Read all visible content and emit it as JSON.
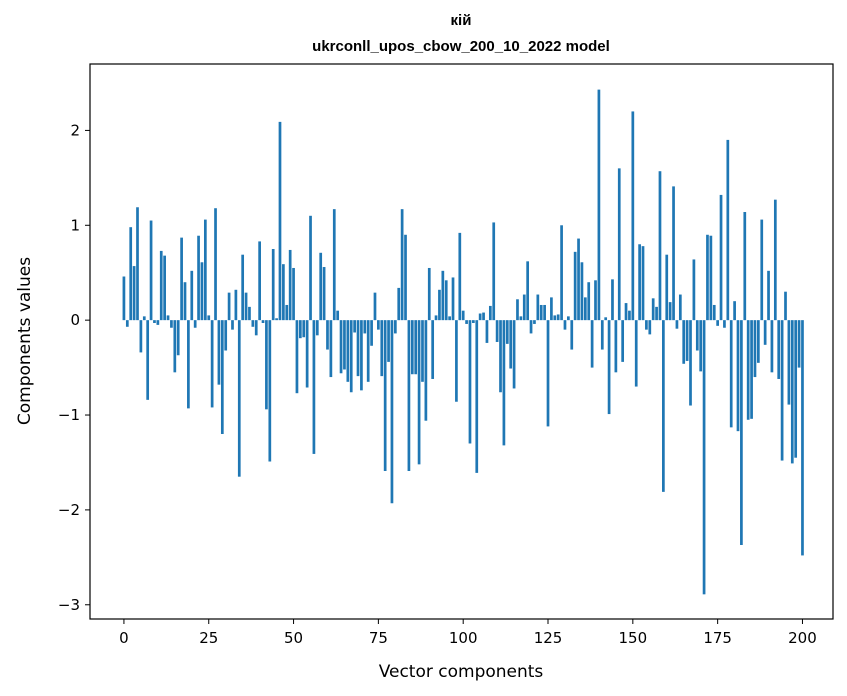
{
  "chart_data": {
    "type": "bar",
    "title_line1": "кій",
    "title_line2": "ukrconll_upos_cbow_200_10_2022 model",
    "xlabel": "Vector components",
    "ylabel": "Components values",
    "xlim": [
      -10,
      209
    ],
    "ylim": [
      -3.15,
      2.7
    ],
    "xticks": [
      0,
      25,
      50,
      75,
      100,
      125,
      150,
      175,
      200
    ],
    "xtick_labels": [
      "0",
      "25",
      "50",
      "75",
      "100",
      "125",
      "150",
      "175",
      "200"
    ],
    "yticks": [
      -3,
      -2,
      -1,
      0,
      1,
      2
    ],
    "ytick_labels": [
      "−3",
      "−2",
      "−1",
      "0",
      "1",
      "2"
    ],
    "bar_color": "#1f77b4",
    "grid": false,
    "values": [
      0.46,
      -0.07,
      0.98,
      0.57,
      1.19,
      -0.34,
      0.04,
      -0.84,
      1.05,
      -0.03,
      -0.05,
      0.73,
      0.68,
      0.05,
      -0.08,
      -0.55,
      -0.37,
      0.87,
      0.4,
      -0.93,
      0.52,
      -0.08,
      0.89,
      0.61,
      1.06,
      0.05,
      -0.92,
      1.18,
      -0.68,
      -1.2,
      -0.32,
      0.29,
      -0.1,
      0.32,
      -1.65,
      0.69,
      0.29,
      0.14,
      -0.07,
      -0.16,
      0.83,
      -0.03,
      -0.94,
      -1.49,
      0.75,
      0.02,
      2.09,
      0.59,
      0.16,
      0.74,
      0.55,
      -0.77,
      -0.19,
      -0.18,
      -0.71,
      1.1,
      -1.41,
      -0.16,
      0.71,
      0.56,
      -0.31,
      -0.6,
      1.17,
      0.1,
      -0.56,
      -0.52,
      -0.65,
      -0.76,
      -0.13,
      -0.59,
      -0.74,
      -0.14,
      -0.65,
      -0.27,
      0.29,
      -0.1,
      -0.59,
      -1.59,
      -0.44,
      -1.93,
      -0.14,
      0.34,
      1.17,
      0.9,
      -1.59,
      -0.57,
      -0.57,
      -1.52,
      -0.65,
      -1.06,
      0.55,
      -0.62,
      0.05,
      0.32,
      0.52,
      0.42,
      0.04,
      0.45,
      -0.86,
      0.92,
      0.1,
      -0.04,
      -1.3,
      -0.03,
      -1.61,
      0.07,
      0.08,
      -0.24,
      0.15,
      1.03,
      -0.23,
      -0.76,
      -1.32,
      -0.25,
      -0.51,
      -0.72,
      0.22,
      0.04,
      0.27,
      0.62,
      -0.14,
      -0.04,
      0.27,
      0.16,
      0.16,
      -1.12,
      0.24,
      0.05,
      0.06,
      1.0,
      -0.1,
      0.04,
      -0.31,
      0.72,
      0.86,
      0.61,
      0.24,
      0.4,
      -0.5,
      0.42,
      2.43,
      -0.31,
      0.03,
      -0.99,
      0.43,
      -0.55,
      1.6,
      -0.44,
      0.18,
      0.1,
      2.2,
      -0.7,
      0.8,
      0.78,
      -0.1,
      -0.15,
      0.23,
      0.14,
      1.57,
      -1.81,
      0.69,
      0.19,
      1.41,
      -0.09,
      0.27,
      -0.46,
      -0.43,
      -0.9,
      0.64,
      -0.32,
      -0.54,
      -2.89,
      0.9,
      0.89,
      0.16,
      -0.06,
      1.32,
      -0.08,
      1.9,
      -1.13,
      0.2,
      -1.17,
      -2.37,
      1.14,
      -1.05,
      -1.04,
      -0.6,
      -0.45,
      1.06,
      -0.26,
      0.52,
      -0.55,
      1.27,
      -0.62,
      -1.48,
      0.3,
      -0.89,
      -1.51,
      -1.45,
      -0.5,
      -2.48
    ]
  }
}
